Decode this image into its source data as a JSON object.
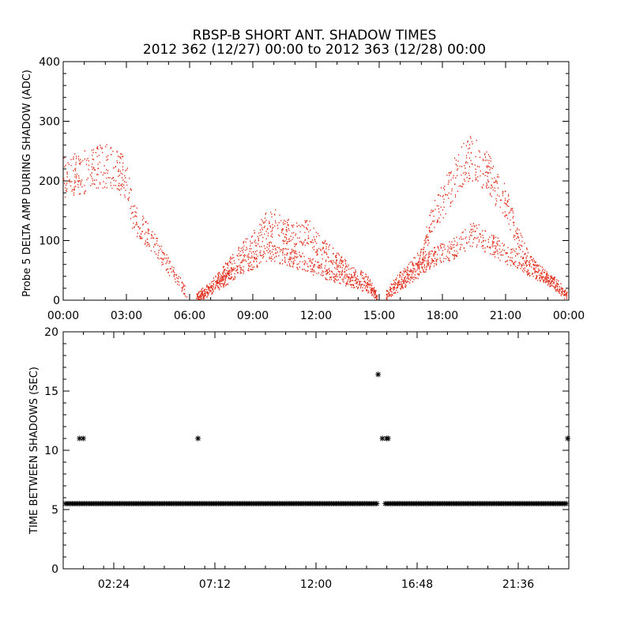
{
  "title_line1": "RBSP-B SHORT ANT. SHADOW TIMES",
  "title_line2": "2012 362 (12/27) 00:00 to 2012 363 (12/28) 00:00",
  "chart_data": [
    {
      "type": "scatter",
      "ylabel": "Probe 5 DELTA AMP DURING SHADOW (ADC)",
      "xlim": [
        0,
        24
      ],
      "ylim": [
        0,
        400
      ],
      "x_ticks": [
        "00:00",
        "03:00",
        "06:00",
        "09:00",
        "12:00",
        "15:00",
        "18:00",
        "21:00",
        "00:00"
      ],
      "y_ticks": [
        "0",
        "100",
        "200",
        "300",
        "400"
      ],
      "color": "#e0301e",
      "series": [
        {
          "x": [
            0.0,
            0.5,
            1.0,
            1.5,
            2.0,
            2.5,
            3.0,
            3.3,
            3.6,
            4.0,
            4.5,
            5.0,
            5.5,
            5.9
          ],
          "y": [
            205,
            210,
            215,
            220,
            225,
            220,
            200,
            140,
            125,
            110,
            85,
            55,
            30,
            8
          ]
        },
        {
          "x": [
            6.3,
            6.7,
            7.2,
            7.7,
            8.2,
            8.7,
            9.2,
            9.6,
            10.0,
            10.5,
            11.0,
            11.3,
            11.6,
            12.0,
            12.5,
            13.0,
            13.5,
            14.0,
            14.5,
            14.9
          ],
          "y": [
            5,
            15,
            30,
            50,
            70,
            88,
            105,
            125,
            130,
            115,
            110,
            112,
            115,
            95,
            80,
            65,
            50,
            40,
            30,
            5
          ]
        },
        {
          "x": [
            6.3,
            6.7,
            7.2,
            7.7,
            8.2,
            8.7,
            9.2,
            9.6,
            10.0,
            10.5,
            11.0,
            11.5,
            12.0,
            12.5,
            13.0,
            13.5,
            14.0,
            14.5,
            14.9
          ],
          "y": [
            3,
            10,
            22,
            35,
            48,
            60,
            70,
            80,
            80,
            72,
            68,
            62,
            52,
            45,
            40,
            32,
            25,
            20,
            4
          ]
        },
        {
          "x": [
            15.3,
            15.7,
            16.2,
            16.7,
            17.0,
            17.5,
            18.0,
            18.5,
            19.0,
            19.5,
            20.0,
            20.5,
            21.0,
            21.5,
            22.0,
            22.5,
            23.0,
            23.5,
            23.9
          ],
          "y": [
            8,
            25,
            45,
            60,
            70,
            140,
            165,
            200,
            230,
            240,
            220,
            190,
            165,
            110,
            70,
            50,
            35,
            25,
            8
          ]
        },
        {
          "x": [
            15.3,
            15.7,
            16.2,
            16.7,
            17.0,
            17.5,
            18.0,
            18.5,
            19.0,
            19.5,
            20.0,
            20.5,
            21.0,
            21.5,
            22.0,
            22.5,
            23.0,
            23.5,
            23.9
          ],
          "y": [
            5,
            18,
            30,
            45,
            55,
            70,
            80,
            85,
            100,
            110,
            100,
            90,
            75,
            70,
            55,
            45,
            35,
            20,
            5
          ]
        }
      ]
    },
    {
      "type": "scatter",
      "ylabel": "TIME BETWEEN SHADOWS (SEC)",
      "xlim": [
        0,
        24
      ],
      "ylim": [
        0,
        20
      ],
      "x_ticks": [
        "02:24",
        "07:12",
        "12:00",
        "16:48",
        "21:36"
      ],
      "y_ticks": [
        "0",
        "5",
        "10",
        "15",
        "20"
      ],
      "color": "#000000",
      "baseline": {
        "value": 5.5,
        "x_start": 0.0,
        "x_end": 24.0,
        "gap_x": [
          15.1
        ]
      },
      "outliers": {
        "x": [
          0.78,
          0.95,
          6.4,
          14.95,
          15.15,
          15.35,
          15.42,
          23.95
        ],
        "y": [
          11,
          11,
          11,
          16.4,
          11,
          11,
          11,
          11
        ]
      }
    }
  ]
}
